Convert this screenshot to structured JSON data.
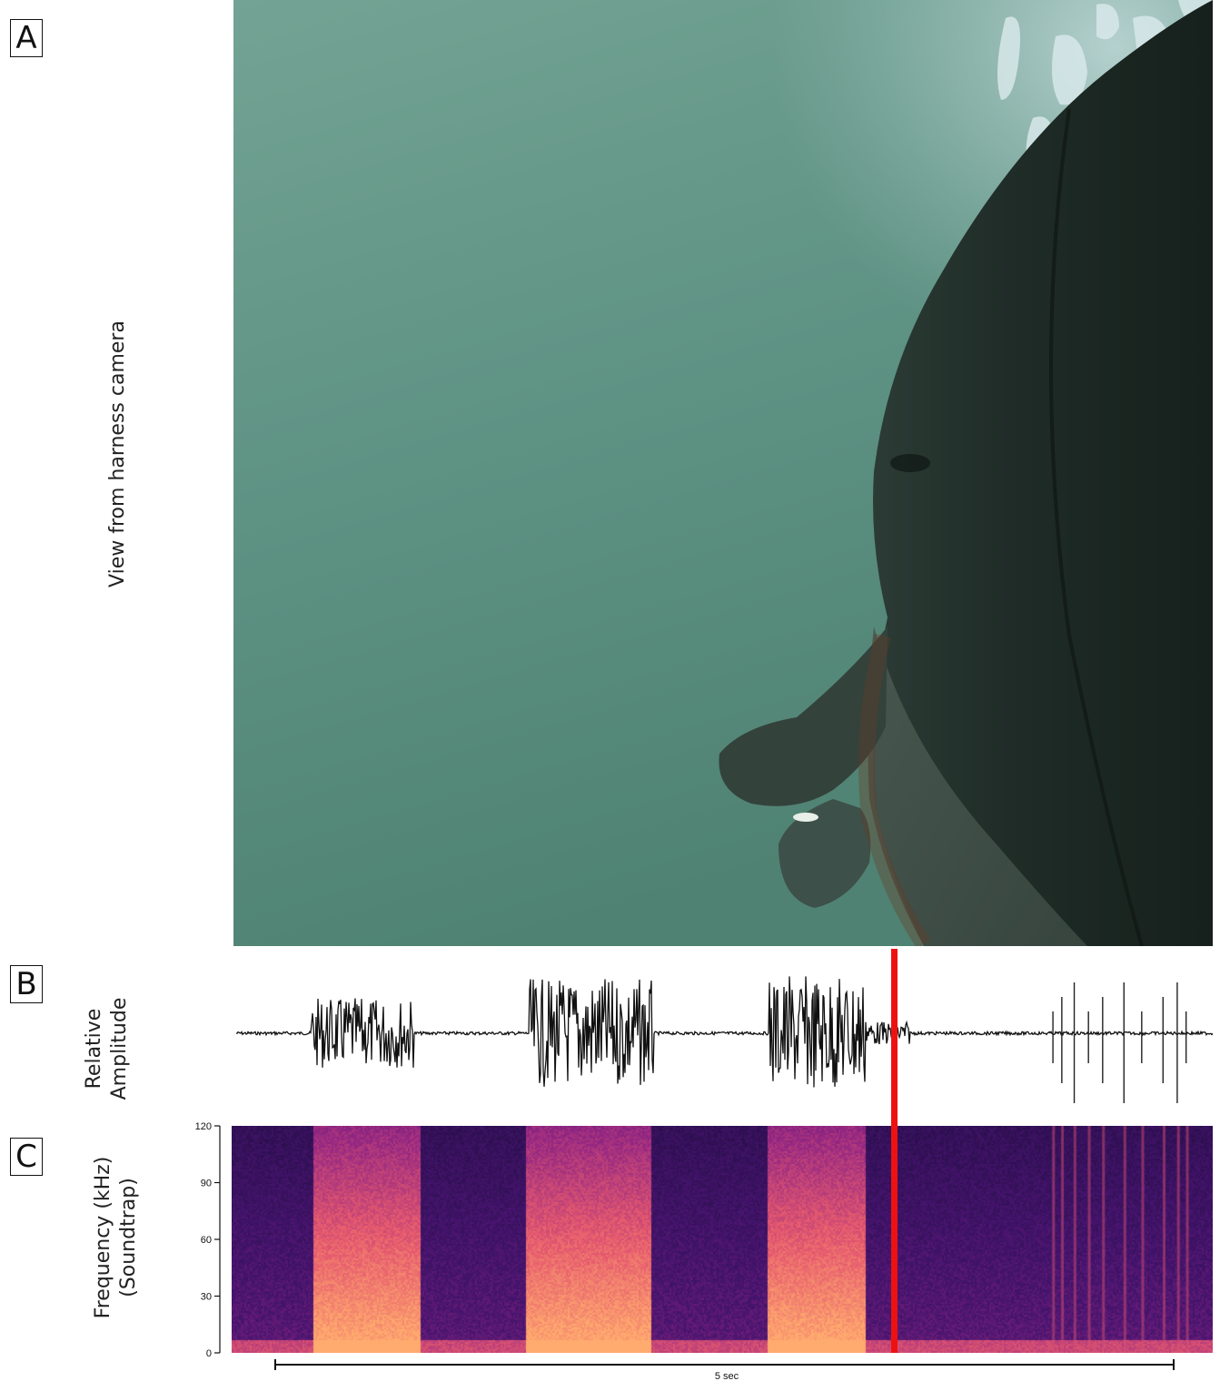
{
  "panels": {
    "a": {
      "letter": "A",
      "label": "View from harness camera"
    },
    "b": {
      "letter": "B",
      "label_line1": "Relative",
      "label_line2": "Amplitude"
    },
    "c": {
      "letter": "C",
      "label_line1": "Frequency (kHz)",
      "label_line2": "(Soundtrap)"
    }
  },
  "colors": {
    "water": "#5c8f82",
    "whale_body": "#1e2a25",
    "cursor": "#ee1111",
    "spectrogram_low": "#1a0b3a",
    "spectrogram_high": "#ffb070"
  },
  "chart_data": [
    {
      "type": "line",
      "ylabel": "Relative Amplitude",
      "note_shape": "waveform with burst segments",
      "bursts_sec": [
        {
          "start": 0.42,
          "end": 1.0,
          "amp": 0.55
        },
        {
          "start": 1.65,
          "end": 2.35,
          "amp": 0.85
        },
        {
          "start": 3.0,
          "end": 3.55,
          "amp": 0.9
        },
        {
          "start": 3.55,
          "end": 3.8,
          "amp": 0.18
        }
      ],
      "clicks_sec": [
        4.6,
        4.65,
        4.72,
        4.8,
        4.88,
        5.0,
        5.1,
        5.22,
        5.3,
        5.35
      ]
    },
    {
      "type": "heatmap",
      "ylabel": "Frequency (kHz) (Soundtrap)",
      "y_ticks": [
        "120",
        "90",
        "60",
        "30",
        "0"
      ],
      "ylim": [
        0,
        120
      ],
      "time_scale_label": "5 sec",
      "bright_bands_sec": [
        {
          "start": 0.45,
          "end": 1.05
        },
        {
          "start": 1.65,
          "end": 2.35
        },
        {
          "start": 3.0,
          "end": 3.55
        }
      ],
      "cursor_sec": 3.62
    }
  ]
}
